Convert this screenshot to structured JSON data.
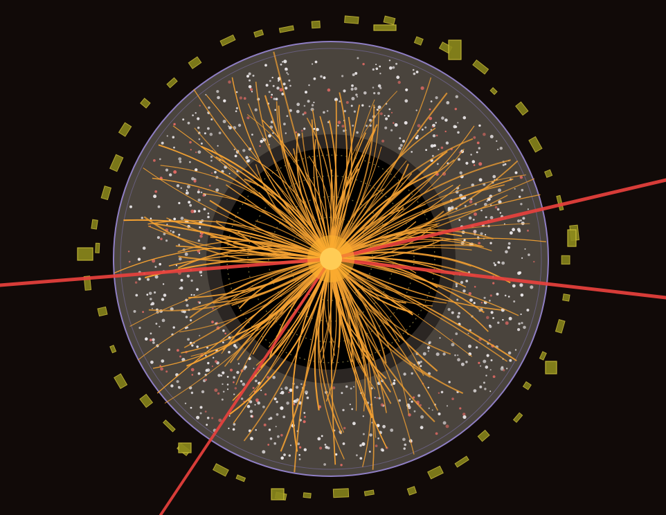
{
  "colors": {
    "background": "#110a08",
    "outer_ring_fill": "#4a443d",
    "outer_ring_edge": "#8f7fc4",
    "inner_cavity": "#000000",
    "inner_band": "#2b2623",
    "tracks": "#f4a132",
    "core_glow": "#ffb32e",
    "muon_tracks": "#e8413d",
    "hits_white": "#ece8ea",
    "hits_red": "#e06a64",
    "calorimeter_boxes_fill": "#8d8a1d",
    "calorimeter_boxes_edge": "#d0c33a"
  },
  "icons": {
    "event_display": "particle-collision-icon"
  }
}
